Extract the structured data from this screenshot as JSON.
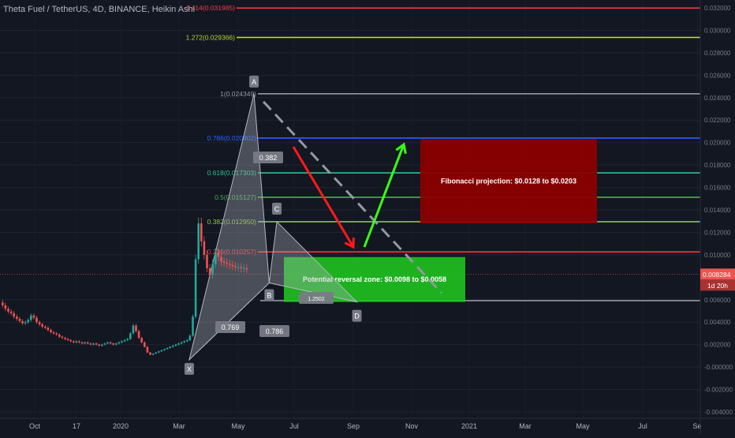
{
  "header": {
    "title": "Theta Fuel / TetherUS, 4D, BINANCE, Heikin Ashi"
  },
  "colors": {
    "background": "#131722",
    "bull": "#26a69a",
    "bear": "#ef5350",
    "fib_1414": "#f23645",
    "fib_1272": "#b5d930",
    "fib_1": "#9598a1",
    "fib_0786": "#2962ff",
    "fib_0618": "#2ebf91",
    "fib_05": "#4caf50",
    "fib_0382": "#8bc34a",
    "fib_0236": "#f23645",
    "fib_0": "#9598a1",
    "pattern_fill": "#b2b5be",
    "projection_box": "#8b0000",
    "reversal_box": "#1fc21f",
    "arrow_red": "#ff1a1a",
    "arrow_green": "#39ff14",
    "dashed_line": "#9598a1",
    "price_tag": "#ef5350"
  },
  "chart_data": {
    "type": "candlestick",
    "symbol": "Theta Fuel / TetherUS",
    "interval": "4D",
    "exchange": "BINANCE",
    "style": "Heikin Ashi",
    "x_ticks": [
      "Oct",
      "17",
      "2020",
      "Mar",
      "May",
      "Jul",
      "Sep",
      "Nov",
      "2021",
      "Mar",
      "May",
      "Jul",
      "Se"
    ],
    "y_ticks": [
      "0.032000",
      "0.030000",
      "0.028000",
      "0.026000",
      "0.024000",
      "0.022000",
      "0.020000",
      "0.018000",
      "0.016000",
      "0.014000",
      "0.012000",
      "0.010000",
      "0.006000",
      "0.004000",
      "0.002000",
      "-0.000000",
      "-0.002000",
      "-0.004000"
    ],
    "ylim": [
      -0.004,
      0.0328
    ],
    "last_price": {
      "label": "0.008284",
      "value": 0.008284,
      "countdown": "1d 20h"
    },
    "candles": [
      {
        "o": 0.00575,
        "c": 0.0055
      },
      {
        "o": 0.0055,
        "c": 0.0052
      },
      {
        "o": 0.0052,
        "c": 0.00495
      },
      {
        "o": 0.00495,
        "c": 0.0048
      },
      {
        "o": 0.0048,
        "c": 0.0045
      },
      {
        "o": 0.0045,
        "c": 0.0043
      },
      {
        "o": 0.0043,
        "c": 0.0041
      },
      {
        "o": 0.0041,
        "c": 0.0039
      },
      {
        "o": 0.0039,
        "c": 0.004
      },
      {
        "o": 0.004,
        "c": 0.0042
      },
      {
        "o": 0.0042,
        "c": 0.0046
      },
      {
        "o": 0.0046,
        "c": 0.0044
      },
      {
        "o": 0.0044,
        "c": 0.004
      },
      {
        "o": 0.004,
        "c": 0.0038
      },
      {
        "o": 0.0038,
        "c": 0.0036
      },
      {
        "o": 0.0036,
        "c": 0.0035
      },
      {
        "o": 0.0035,
        "c": 0.0033
      },
      {
        "o": 0.0033,
        "c": 0.0031
      },
      {
        "o": 0.0031,
        "c": 0.003
      },
      {
        "o": 0.003,
        "c": 0.0029
      },
      {
        "o": 0.0029,
        "c": 0.0027
      },
      {
        "o": 0.0027,
        "c": 0.0026
      },
      {
        "o": 0.0026,
        "c": 0.0025
      },
      {
        "o": 0.0025,
        "c": 0.0024
      },
      {
        "o": 0.0024,
        "c": 0.0023
      },
      {
        "o": 0.0023,
        "c": 0.0022
      },
      {
        "o": 0.0022,
        "c": 0.0023
      },
      {
        "o": 0.0023,
        "c": 0.0022
      },
      {
        "o": 0.0022,
        "c": 0.0021
      },
      {
        "o": 0.0021,
        "c": 0.0022
      },
      {
        "o": 0.0022,
        "c": 0.0021
      },
      {
        "o": 0.0021,
        "c": 0.002
      },
      {
        "o": 0.002,
        "c": 0.0021
      },
      {
        "o": 0.0021,
        "c": 0.002
      },
      {
        "o": 0.002,
        "c": 0.0019
      },
      {
        "o": 0.0019,
        "c": 0.002
      },
      {
        "o": 0.002,
        "c": 0.0021
      },
      {
        "o": 0.0021,
        "c": 0.0022
      },
      {
        "o": 0.0022,
        "c": 0.0021
      },
      {
        "o": 0.0021,
        "c": 0.002
      },
      {
        "o": 0.002,
        "c": 0.0021
      },
      {
        "o": 0.0021,
        "c": 0.0022
      },
      {
        "o": 0.0022,
        "c": 0.0023
      },
      {
        "o": 0.0023,
        "c": 0.0024
      },
      {
        "o": 0.0024,
        "c": 0.0025
      },
      {
        "o": 0.0025,
        "c": 0.003
      },
      {
        "o": 0.003,
        "c": 0.0037
      },
      {
        "o": 0.0037,
        "c": 0.0032
      },
      {
        "o": 0.0032,
        "c": 0.0026
      },
      {
        "o": 0.0026,
        "c": 0.0022
      },
      {
        "o": 0.0022,
        "c": 0.0018
      },
      {
        "o": 0.0018,
        "c": 0.0013
      },
      {
        "o": 0.0013,
        "c": 0.0011
      },
      {
        "o": 0.0011,
        "c": 0.0012
      },
      {
        "o": 0.0012,
        "c": 0.0013
      },
      {
        "o": 0.0013,
        "c": 0.0014
      },
      {
        "o": 0.0014,
        "c": 0.0015
      },
      {
        "o": 0.0015,
        "c": 0.0016
      },
      {
        "o": 0.0016,
        "c": 0.0017
      },
      {
        "o": 0.0017,
        "c": 0.0018
      },
      {
        "o": 0.0018,
        "c": 0.0019
      },
      {
        "o": 0.0019,
        "c": 0.002
      },
      {
        "o": 0.002,
        "c": 0.0021
      },
      {
        "o": 0.0021,
        "c": 0.0022
      },
      {
        "o": 0.0022,
        "c": 0.0023
      },
      {
        "o": 0.0023,
        "c": 0.0024
      },
      {
        "o": 0.0024,
        "c": 0.0028
      },
      {
        "o": 0.0028,
        "c": 0.0045
      },
      {
        "o": 0.0045,
        "c": 0.0096
      },
      {
        "o": 0.0096,
        "c": 0.0128
      },
      {
        "o": 0.0128,
        "c": 0.0112
      },
      {
        "o": 0.0112,
        "c": 0.01
      },
      {
        "o": 0.01,
        "c": 0.0088
      },
      {
        "o": 0.0088,
        "c": 0.0082
      },
      {
        "o": 0.0082,
        "c": 0.0092
      },
      {
        "o": 0.0092,
        "c": 0.0102
      },
      {
        "o": 0.0102,
        "c": 0.0098
      },
      {
        "o": 0.0098,
        "c": 0.0094
      },
      {
        "o": 0.0094,
        "c": 0.0093
      },
      {
        "o": 0.0093,
        "c": 0.0092
      },
      {
        "o": 0.0092,
        "c": 0.0091
      },
      {
        "o": 0.0091,
        "c": 0.009
      },
      {
        "o": 0.009,
        "c": 0.0089
      },
      {
        "o": 0.0089,
        "c": 0.0089
      },
      {
        "o": 0.0089,
        "c": 0.0088
      },
      {
        "o": 0.0088,
        "c": 0.0088
      },
      {
        "o": 0.0088,
        "c": 0.0087
      }
    ],
    "fib_levels": [
      {
        "ratio": 1.414,
        "label": "1.414(0.031985)",
        "price": 0.031985,
        "color_key": "fib_1414"
      },
      {
        "ratio": 1.272,
        "label": "1.272(0.029366)",
        "price": 0.029366,
        "color_key": "fib_1272"
      },
      {
        "ratio": 1,
        "label": "1(0.024349)",
        "price": 0.024349,
        "color_key": "fib_1"
      },
      {
        "ratio": 0.786,
        "label": "0.786(0.020402)",
        "price": 0.020402,
        "color_key": "fib_0786"
      },
      {
        "ratio": 0.618,
        "label": "0.618(0.017303)",
        "price": 0.017303,
        "color_key": "fib_0618"
      },
      {
        "ratio": 0.5,
        "label": "0.5(0.015127)",
        "price": 0.015127,
        "color_key": "fib_05"
      },
      {
        "ratio": 0.382,
        "label": "0.382(0.012950)",
        "price": 0.01295,
        "color_key": "fib_0382"
      },
      {
        "ratio": 0.236,
        "label": "0.236(0.010257)",
        "price": 0.010257,
        "color_key": "fib_0236"
      },
      {
        "ratio": 0,
        "label": "",
        "price": 0.005915,
        "color_key": "fib_0"
      }
    ],
    "harmonic_points": [
      {
        "label": "X",
        "price": 0.00065,
        "date": "2020-03-13"
      },
      {
        "label": "A",
        "price": 0.024349,
        "date": "2020-05-20"
      },
      {
        "label": "B",
        "price": 0.0075,
        "date": "2020-06-05"
      },
      {
        "label": "C",
        "price": 0.01295,
        "date": "2020-06-13"
      },
      {
        "label": "D",
        "price": 0.0058,
        "date": "2020-09-05"
      }
    ],
    "ratio_labels": [
      "0.382",
      "0.769",
      "0.786",
      "1.2502"
    ],
    "zones": [
      {
        "label": "Fibonacci projection: $0.0128 to $0.0203",
        "from": 0.0128,
        "to": 0.0203,
        "color_key": "projection_box"
      },
      {
        "label": "Potential reversal zone: $0.0098 to $0.0058",
        "from": 0.0098,
        "to": 0.0058,
        "color_key": "reversal_box"
      }
    ]
  }
}
